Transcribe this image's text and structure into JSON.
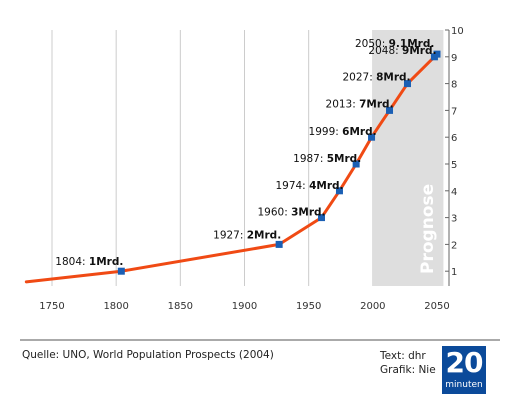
{
  "chart_data": {
    "type": "line",
    "x": [
      1730,
      1804,
      1927,
      1960,
      1974,
      1987,
      1999,
      2013,
      2027,
      2048,
      2050
    ],
    "y": [
      0.6,
      1,
      2,
      3,
      4,
      5,
      6,
      7,
      8,
      9,
      9.1
    ],
    "marker_points": [
      {
        "year": 1804,
        "value": 1,
        "label_year": "1804: ",
        "label_value": "1Mrd."
      },
      {
        "year": 1927,
        "value": 2,
        "label_year": "1927: ",
        "label_value": "2Mrd."
      },
      {
        "year": 1960,
        "value": 3,
        "label_year": "1960: ",
        "label_value": "3Mrd."
      },
      {
        "year": 1974,
        "value": 4,
        "label_year": "1974: ",
        "label_value": "4Mrd."
      },
      {
        "year": 1987,
        "value": 5,
        "label_year": "1987: ",
        "label_value": "5Mrd."
      },
      {
        "year": 1999,
        "value": 6,
        "label_year": "1999: ",
        "label_value": "6Mrd."
      },
      {
        "year": 2013,
        "value": 7,
        "label_year": "2013: ",
        "label_value": "7Mrd."
      },
      {
        "year": 2027,
        "value": 8,
        "label_year": "2027: ",
        "label_value": "8Mrd."
      },
      {
        "year": 2048,
        "value": 9,
        "label_year": "2048: ",
        "label_value": "9Mrd."
      },
      {
        "year": 2050,
        "value": 9.1,
        "label_year": "2050: ",
        "label_value": "9.1Mrd."
      }
    ],
    "xlim": [
      1730,
      2055
    ],
    "ylim": [
      0,
      10
    ],
    "x_ticks": [
      1750,
      1800,
      1850,
      1900,
      1950,
      2000,
      2050
    ],
    "y_ticks": [
      1,
      2,
      3,
      4,
      5,
      6,
      7,
      8,
      9,
      10
    ],
    "y_axis_side": "right",
    "grid": "vertical",
    "forecast": {
      "from": 2000,
      "to": 2055,
      "label": "Prognose"
    },
    "colors": {
      "line": "#f04a14",
      "marker": "#1a5fb4",
      "forecast_band": "#dedede",
      "grid": "#cccccc"
    }
  },
  "footer": {
    "source": "Quelle: UNO, World Population Prospects (2004)",
    "text_credit": "Text: dhr",
    "graphic_credit": "Grafik: Nie"
  },
  "logo": {
    "number": "20",
    "word": "minuten"
  }
}
